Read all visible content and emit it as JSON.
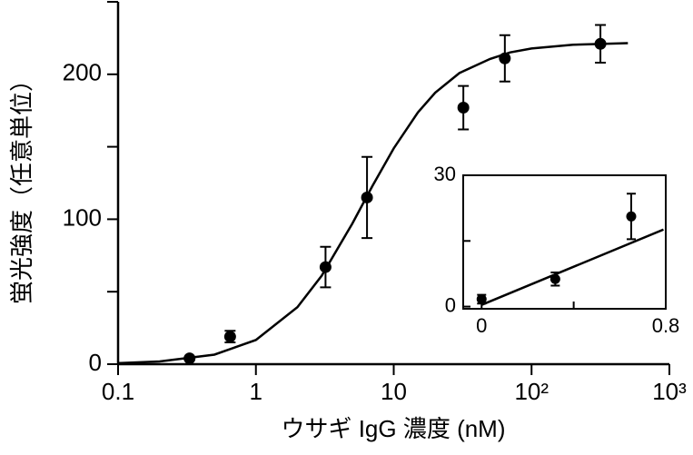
{
  "chart_data": [
    {
      "type": "scatter",
      "xlabel": "ウサギ IgG 濃度 (nM)",
      "ylabel": "蛍光強度（任意単位）",
      "xscale": "log",
      "xlim": [
        0.1,
        1000
      ],
      "xticks": [
        0.1,
        1,
        10,
        {
          "value": 100,
          "label": "10²"
        },
        {
          "value": 1000,
          "label": "10³"
        }
      ],
      "ylim": [
        0,
        250
      ],
      "yticks": [
        0,
        100,
        200
      ],
      "yminor": [
        50,
        150,
        250
      ],
      "series": [
        {
          "mode": "markers",
          "color": "#000000",
          "x": [
            0.33,
            0.65,
            3.2,
            6.4,
            32,
            64,
            316
          ],
          "values": [
            4,
            19,
            67,
            115,
            177,
            211,
            221
          ],
          "errors": [
            1,
            4,
            14,
            28,
            15,
            16,
            13
          ]
        },
        {
          "mode": "line",
          "color": "#000000",
          "x": [
            0.1,
            0.2,
            0.5,
            1,
            2,
            3,
            5,
            7,
            10,
            15,
            20,
            30,
            50,
            70,
            100,
            200,
            500
          ],
          "values": [
            0.7,
            1.9,
            6.6,
            16.7,
            39.3,
            61,
            96.9,
            122.9,
            148.9,
            173.8,
            187.3,
            200.9,
            210.6,
            215.1,
            217.8,
            220.4,
            221.5
          ]
        }
      ]
    },
    {
      "type": "scatter",
      "xlim": [
        -0.08,
        0.8
      ],
      "xticks": [
        0,
        0.8
      ],
      "xminor": [
        0.4
      ],
      "ylim": [
        -0.5,
        30
      ],
      "yticks": [
        0,
        30
      ],
      "yminor": [
        15
      ],
      "series": [
        {
          "mode": "markers",
          "color": "#000000",
          "x": [
            0,
            0.32,
            0.65
          ],
          "values": [
            1.7,
            6.3,
            20.6
          ],
          "errors": [
            1,
            1.5,
            5.2
          ]
        },
        {
          "mode": "line",
          "color": "#000000",
          "x": [
            0,
            0.79
          ],
          "values": [
            0.4,
            17.6
          ]
        }
      ]
    }
  ]
}
